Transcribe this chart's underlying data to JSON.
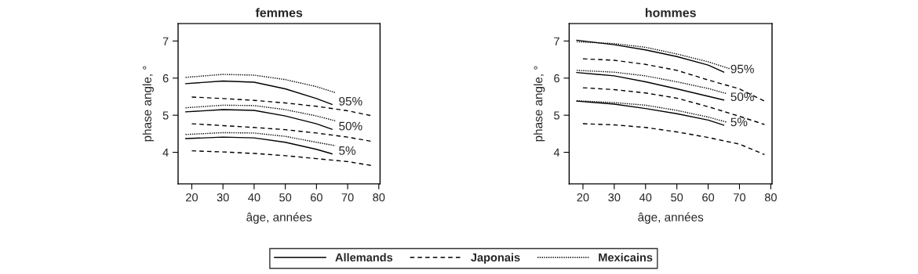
{
  "chart_data": [
    {
      "type": "line",
      "title": "femmes",
      "xlabel": "âge, années",
      "ylabel": "phase angle, °",
      "xlim": [
        15.6,
        80.4
      ],
      "ylim": [
        3.15,
        7.47
      ],
      "xticks": [
        20,
        30,
        40,
        50,
        60,
        70,
        80
      ],
      "yticks": [
        4,
        5,
        6,
        7
      ],
      "grid": false,
      "legend": "bottom",
      "series": [
        {
          "name": "Allemands",
          "color": "#000000",
          "line_style": "solid",
          "x": [
            18,
            30,
            40,
            50,
            60,
            65
          ],
          "values": [
            5.85,
            5.92,
            5.89,
            5.71,
            5.45,
            5.29
          ]
        },
        {
          "color": "#000000",
          "line_style": "solid",
          "x": [
            18,
            30,
            40,
            50,
            60,
            65
          ],
          "values": [
            5.09,
            5.15,
            5.13,
            4.98,
            4.77,
            4.62
          ]
        },
        {
          "color": "#000000",
          "line_style": "solid",
          "x": [
            18,
            30,
            40,
            50,
            60,
            65
          ],
          "values": [
            4.37,
            4.41,
            4.39,
            4.27,
            4.08,
            3.96
          ]
        },
        {
          "name": "Japonais",
          "color": "#000000",
          "line_style": "dashed",
          "x": [
            20,
            30,
            40,
            50,
            60,
            70,
            78
          ],
          "values": [
            5.49,
            5.45,
            5.4,
            5.33,
            5.24,
            5.12,
            4.98
          ]
        },
        {
          "color": "#000000",
          "line_style": "dashed",
          "x": [
            20,
            30,
            40,
            50,
            60,
            70,
            78
          ],
          "values": [
            4.77,
            4.72,
            4.67,
            4.61,
            4.52,
            4.41,
            4.29
          ]
        },
        {
          "color": "#000000",
          "line_style": "dashed",
          "x": [
            20,
            30,
            40,
            50,
            60,
            70,
            78
          ],
          "values": [
            4.04,
            4.01,
            3.97,
            3.91,
            3.83,
            3.75,
            3.64
          ]
        },
        {
          "name": "Mexicains",
          "color": "#000000",
          "line_style": "dotted",
          "x": [
            18,
            30,
            40,
            50,
            60,
            66
          ],
          "values": [
            6.02,
            6.1,
            6.08,
            5.96,
            5.77,
            5.61
          ]
        },
        {
          "color": "#000000",
          "line_style": "dotted",
          "x": [
            18,
            30,
            40,
            50,
            60,
            66
          ],
          "values": [
            5.2,
            5.27,
            5.26,
            5.15,
            4.98,
            4.85
          ]
        },
        {
          "color": "#000000",
          "line_style": "dotted",
          "x": [
            18,
            30,
            40,
            50,
            60,
            66
          ],
          "values": [
            4.48,
            4.53,
            4.52,
            4.43,
            4.27,
            4.18
          ]
        }
      ],
      "annotations": [
        "95%",
        "50%",
        "5%"
      ]
    },
    {
      "type": "line",
      "title": "hommes",
      "xlabel": "âge, années",
      "ylabel": "phase angle, °",
      "xlim": [
        15.6,
        80.4
      ],
      "ylim": [
        3.15,
        7.47
      ],
      "xticks": [
        20,
        30,
        40,
        50,
        60,
        70,
        80
      ],
      "yticks": [
        4,
        5,
        6,
        7
      ],
      "grid": false,
      "legend": "bottom",
      "series": [
        {
          "name": "Allemands",
          "color": "#000000",
          "line_style": "solid",
          "x": [
            18,
            30,
            40,
            50,
            60,
            65
          ],
          "values": [
            7.02,
            6.9,
            6.76,
            6.58,
            6.35,
            6.16
          ]
        },
        {
          "color": "#000000",
          "line_style": "solid",
          "x": [
            18,
            30,
            40,
            50,
            60,
            65
          ],
          "values": [
            6.15,
            6.06,
            5.9,
            5.71,
            5.51,
            5.41
          ]
        },
        {
          "color": "#000000",
          "line_style": "solid",
          "x": [
            18,
            30,
            40,
            50,
            60,
            65
          ],
          "values": [
            5.38,
            5.3,
            5.18,
            5.04,
            4.87,
            4.73
          ]
        },
        {
          "name": "Japonais",
          "color": "#000000",
          "line_style": "dashed",
          "x": [
            20,
            30,
            40,
            50,
            60,
            70,
            78
          ],
          "values": [
            6.52,
            6.48,
            6.37,
            6.21,
            5.95,
            5.71,
            5.38
          ]
        },
        {
          "color": "#000000",
          "line_style": "dashed",
          "x": [
            20,
            30,
            40,
            50,
            60,
            70,
            78
          ],
          "values": [
            5.74,
            5.69,
            5.6,
            5.46,
            5.23,
            4.97,
            4.75
          ]
        },
        {
          "color": "#000000",
          "line_style": "dashed",
          "x": [
            20,
            30,
            40,
            50,
            60,
            70,
            78
          ],
          "values": [
            4.77,
            4.74,
            4.67,
            4.55,
            4.4,
            4.22,
            3.94
          ]
        },
        {
          "name": "Mexicains",
          "color": "#000000",
          "line_style": "dotted",
          "x": [
            18,
            30,
            40,
            50,
            60,
            67
          ],
          "values": [
            6.98,
            6.93,
            6.83,
            6.65,
            6.44,
            6.25
          ]
        },
        {
          "color": "#000000",
          "line_style": "dotted",
          "x": [
            18,
            30,
            40,
            50,
            60,
            66
          ],
          "values": [
            6.21,
            6.16,
            6.06,
            5.9,
            5.72,
            5.58
          ]
        },
        {
          "color": "#000000",
          "line_style": "dotted",
          "x": [
            18,
            30,
            40,
            50,
            60,
            66
          ],
          "values": [
            5.39,
            5.34,
            5.27,
            5.13,
            4.95,
            4.81
          ]
        }
      ],
      "annotations": [
        "95%",
        "50%",
        "5%"
      ]
    }
  ]
}
